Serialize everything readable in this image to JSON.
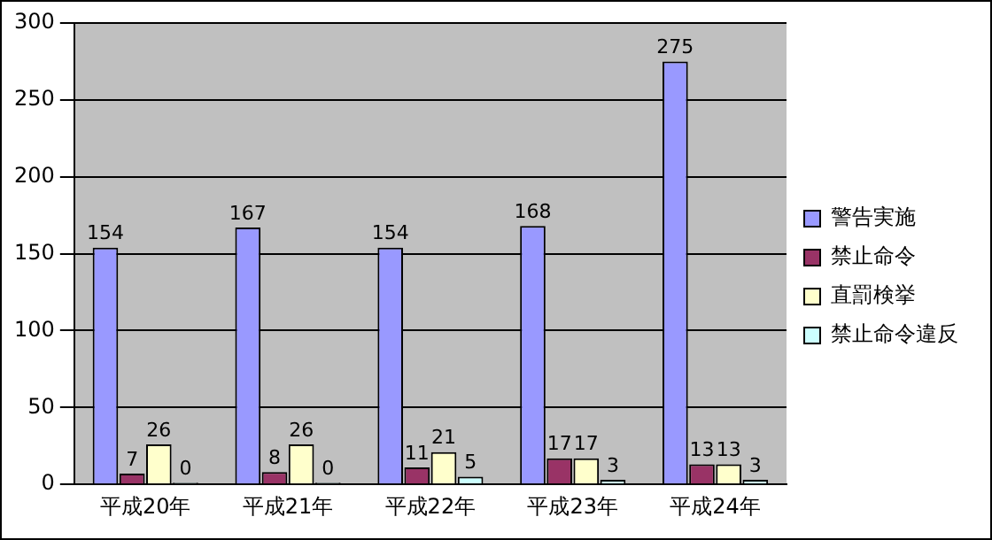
{
  "chart_data": {
    "type": "bar",
    "categories": [
      "平成20年",
      "平成21年",
      "平成22年",
      "平成23年",
      "平成24年"
    ],
    "series": [
      {
        "name": "警告実施",
        "color": "#9999ff",
        "values": [
          154,
          167,
          154,
          168,
          275
        ]
      },
      {
        "name": "禁止命令",
        "color": "#993366",
        "values": [
          7,
          8,
          11,
          17,
          13
        ]
      },
      {
        "name": "直罰検挙",
        "color": "#ffffcc",
        "values": [
          26,
          26,
          21,
          17,
          13
        ]
      },
      {
        "name": "禁止命令違反",
        "color": "#ccffff",
        "values": [
          0,
          0,
          5,
          3,
          3
        ]
      }
    ],
    "ylim": [
      0,
      300
    ],
    "yticks": [
      0,
      50,
      100,
      150,
      200,
      250,
      300
    ],
    "grid": "y",
    "legend": "right",
    "data_labels": true
  }
}
